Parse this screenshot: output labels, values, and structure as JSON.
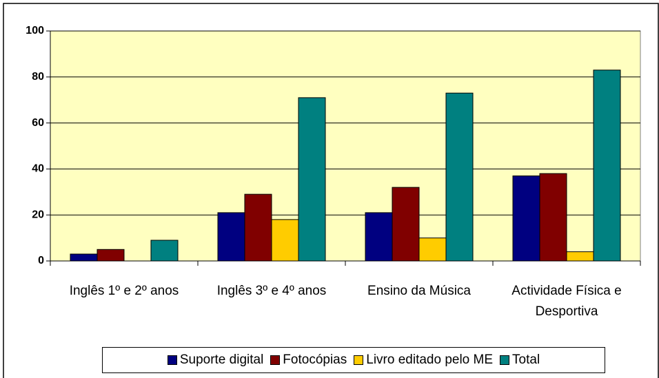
{
  "chart_data": {
    "type": "bar",
    "categories": [
      "Inglês 1º e 2º anos",
      "Inglês 3º e 4º anos",
      "Ensino da Música",
      "Actividade Física e Desportiva"
    ],
    "series": [
      {
        "name": "Suporte digital",
        "color": "#000080",
        "values": [
          3,
          21,
          21,
          37
        ]
      },
      {
        "name": "Fotocópias",
        "color": "#800000",
        "values": [
          5,
          29,
          32,
          38
        ]
      },
      {
        "name": "Livro editado pelo ME",
        "color": "#ffcc00",
        "values": [
          0,
          18,
          10,
          4
        ]
      },
      {
        "name": "Total",
        "color": "#008080",
        "values": [
          9,
          71,
          73,
          83
        ]
      }
    ],
    "ylim": [
      0,
      100
    ],
    "yticks": [
      0,
      20,
      40,
      60,
      80,
      100
    ],
    "grid": true,
    "plot_background": "#ffffc0",
    "legend": "bottom"
  }
}
